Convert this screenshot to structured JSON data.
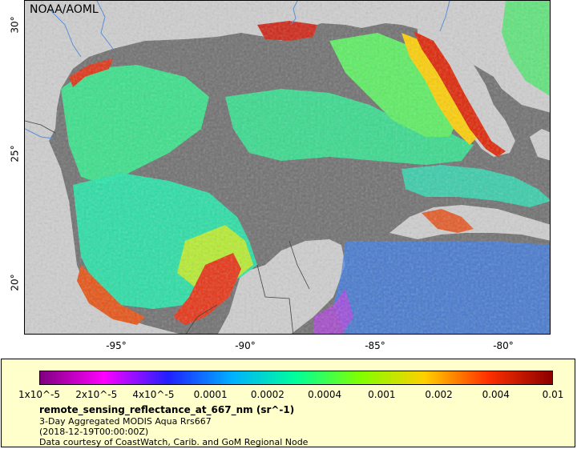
{
  "map": {
    "credit": "NOAA/AOML",
    "colors": {
      "land": "#cfcfcf",
      "no_data": "#6e6e6e",
      "rivers": "#5b8fd6",
      "borders": "#444444"
    },
    "x_ticks": [
      "-95°",
      "-90°",
      "-85°",
      "-80°"
    ],
    "y_ticks": [
      "30°",
      "25°",
      "20°"
    ]
  },
  "legend": {
    "colorbar_colors": [
      "#7f007f",
      "#ff00ff",
      "#2020ff",
      "#00b0ff",
      "#00ff9a",
      "#80ff00",
      "#ffd000",
      "#ff3000",
      "#8b0000"
    ],
    "labels": [
      "1x10^-5",
      "2x10^-5",
      "4x10^-5",
      "0.0001",
      "0.0002",
      "0.0004",
      "0.001",
      "0.002",
      "0.004",
      "0.01"
    ],
    "variable": "remote_sensing_reflectance_at_667_nm (sr^-1)",
    "lines": [
      "3-Day Aggregated MODIS Aqua Rrs667",
      "(2018-12-19T00:00:00Z)",
      "Data courtesy of CoastWatch, Carib. and GoM Regional Node"
    ]
  }
}
